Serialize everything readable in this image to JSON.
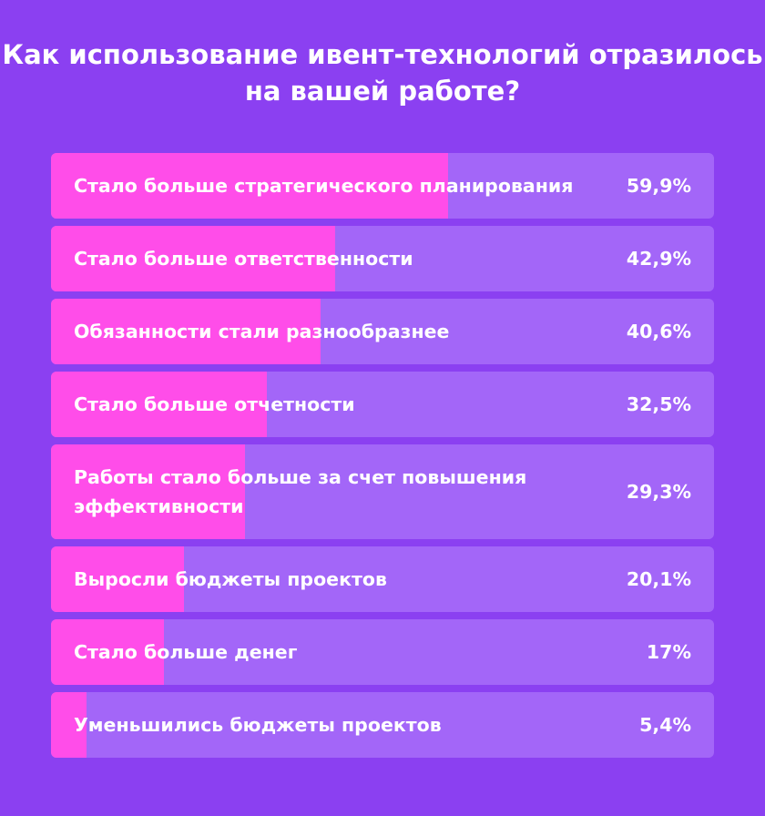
{
  "chart_data": {
    "type": "bar",
    "orientation": "horizontal",
    "title": "Как использование ивент-технологий отразилось на вашей работе?",
    "xlim": [
      0,
      100
    ],
    "categories": [
      "Стало больше стратегического планирования",
      "Стало больше ответственности",
      "Обязанности стали разнообразнее",
      "Стало больше отчетности",
      "Работы стало больше за счет повышения эффективности",
      "Выросли бюджеты проектов",
      "Стало больше денег",
      "Уменьшились бюджеты проектов"
    ],
    "values": [
      59.9,
      42.9,
      40.6,
      32.5,
      29.3,
      20.1,
      17,
      5.4
    ],
    "value_labels": [
      "59,9%",
      "42,9%",
      "40,6%",
      "32,5%",
      "29,3%",
      "20,1%",
      "17%",
      "5,4%"
    ],
    "colors": {
      "background": "#8b40f1",
      "track": "#a366f8",
      "fill": "#ff4de9"
    }
  }
}
